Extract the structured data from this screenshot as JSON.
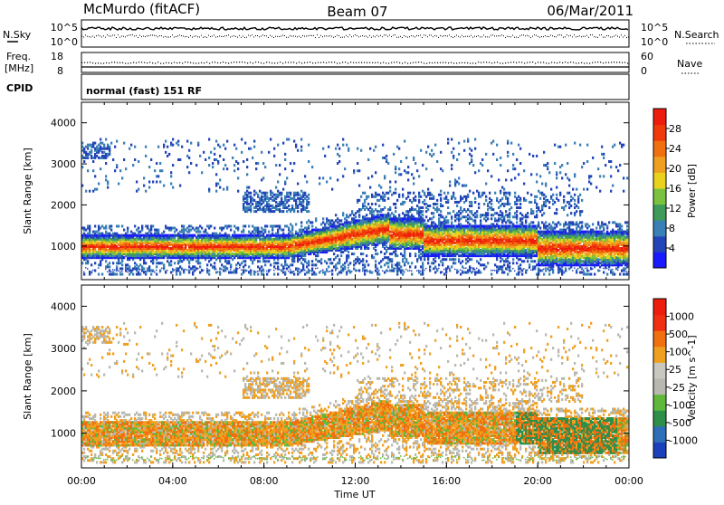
{
  "header": {
    "station": "McMurdo (fitACF)",
    "beam": "Beam 07",
    "date": "06/Mar/2011"
  },
  "top_panels": {
    "nsky_label": "N.Sky",
    "nsearch_label": "N.Search",
    "nsky_ticks": [
      "10^5",
      "10^0"
    ],
    "nsearch_ticks": [
      "10^5",
      "10^0"
    ],
    "freq_label_1": "Freq.",
    "freq_label_2": "[MHz]",
    "freq_ticks": [
      "18",
      "8"
    ],
    "nave_label": "Nave",
    "nave_ticks": [
      "60",
      "0"
    ],
    "cpid_label": "CPID",
    "cpid_value": "normal (fast) 151 RF"
  },
  "colors": {
    "power_scale": [
      "#1a1aff",
      "#2244b8",
      "#3a7fb5",
      "#3e9b5a",
      "#7cc241",
      "#e8d21e",
      "#f0a020",
      "#f07010",
      "#f03a0a",
      "#ee1c0c"
    ],
    "velocity_scale": [
      "#1c3fbb",
      "#2f6eb8",
      "#2e8f4a",
      "#5fb83a",
      "#b8b8b0",
      "#c8c8c0",
      "#f0a020",
      "#f07010",
      "#f03010",
      "#ee1c0c"
    ]
  },
  "chart_data": [
    {
      "type": "heatmap",
      "name": "power",
      "ylabel": "Slant Range [km]",
      "xlabel": "Time UT",
      "colorbar_label": "Power [dB]",
      "colorbar_ticks": [
        "28",
        "24",
        "20",
        "16",
        "12",
        "8",
        "4"
      ],
      "x_ticks": [
        "00:00",
        "04:00",
        "08:00",
        "12:00",
        "16:00",
        "20:00",
        "00:00"
      ],
      "y_ticks": [
        "4000",
        "3000",
        "2000",
        "1000"
      ],
      "xlim": [
        0,
        24
      ],
      "ylim": [
        180,
        4500
      ],
      "clim": [
        0,
        30
      ]
    },
    {
      "type": "heatmap",
      "name": "velocity",
      "ylabel": "Slant Range [km]",
      "xlabel": "Time UT",
      "colorbar_label": "Velocity [m s^-1]",
      "colorbar_ticks": [
        "1000",
        "500",
        "100",
        "25",
        "-25",
        "-100",
        "-500",
        "-1000"
      ],
      "x_ticks": [
        "00:00",
        "04:00",
        "08:00",
        "12:00",
        "16:00",
        "20:00",
        "00:00"
      ],
      "y_ticks": [
        "4000",
        "3000",
        "2000",
        "1000"
      ],
      "xlim": [
        0,
        24
      ],
      "ylim": [
        180,
        4500
      ]
    }
  ]
}
